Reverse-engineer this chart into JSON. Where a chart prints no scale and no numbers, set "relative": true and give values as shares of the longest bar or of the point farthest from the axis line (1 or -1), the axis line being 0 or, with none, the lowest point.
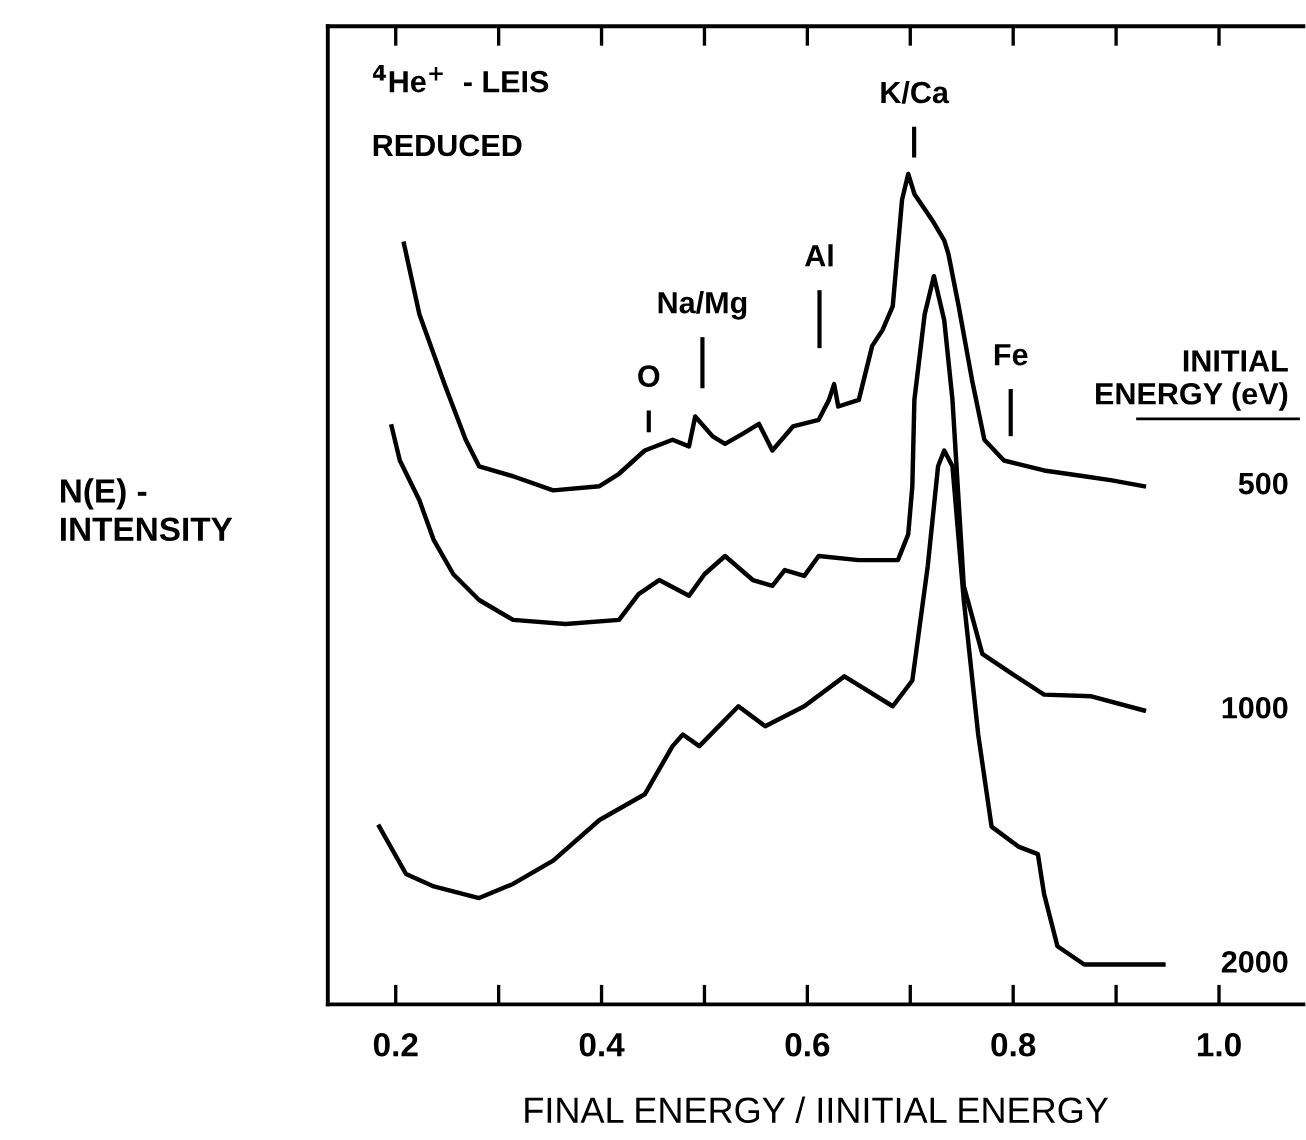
{
  "chart_data": {
    "type": "line",
    "relative": true,
    "xlabel": "FINAL ENERGY / IINITIAL ENERGY",
    "ylabel": "N(E) -\nINTENSITY",
    "legend_title": "INITIAL ENERGY (eV)",
    "xlim": [
      0.134,
      1.082
    ],
    "xticks": [
      0.2,
      {
        "value": 0.3,
        "label": null
      },
      0.4,
      {
        "value": 0.5,
        "label": null
      },
      0.6,
      {
        "value": 0.7,
        "label": null
      },
      0.8,
      {
        "value": 0.9,
        "label": null
      },
      {
        "value": 1.0,
        "label": "1.0"
      }
    ],
    "grid": false,
    "legend": false,
    "marker": "none",
    "line_style": "solid",
    "annotations": [
      "$^{4}$He$^{+}$  - LEIS",
      "REDUCED",
      "O",
      "Na/Mg",
      "Al",
      "K/Ca",
      "Fe"
    ],
    "series": [
      {
        "name": "500",
        "color": "#000000",
        "x": [
          0.208,
          0.223,
          0.248,
          0.268,
          0.281,
          0.314,
          0.353,
          0.398,
          0.417,
          0.442,
          0.469,
          0.485,
          0.491,
          0.508,
          0.52,
          0.537,
          0.553,
          0.566,
          0.586,
          0.611,
          0.621,
          0.626,
          0.63,
          0.65,
          0.663,
          0.673,
          0.683,
          0.692,
          0.698,
          0.704,
          0.721,
          0.733,
          0.737,
          0.747,
          0.76,
          0.772,
          0.791,
          0.83,
          0.869,
          0.896,
          0.927
        ],
        "values": [
          0.916,
          0.831,
          0.745,
          0.68,
          0.648,
          0.636,
          0.619,
          0.624,
          0.639,
          0.667,
          0.68,
          0.672,
          0.708,
          0.684,
          0.675,
          0.687,
          0.699,
          0.667,
          0.696,
          0.704,
          0.728,
          0.747,
          0.72,
          0.728,
          0.793,
          0.812,
          0.841,
          0.969,
          1.0,
          0.976,
          0.945,
          0.92,
          0.904,
          0.841,
          0.752,
          0.68,
          0.655,
          0.643,
          0.636,
          0.631,
          0.624
        ]
      },
      {
        "name": "1000",
        "color": "#000000",
        "x": [
          0.196,
          0.204,
          0.223,
          0.237,
          0.256,
          0.281,
          0.314,
          0.365,
          0.417,
          0.436,
          0.456,
          0.485,
          0.5,
          0.52,
          0.547,
          0.566,
          0.578,
          0.597,
          0.611,
          0.65,
          0.688,
          0.698,
          0.702,
          0.704,
          0.714,
          0.723,
          0.733,
          0.741,
          0.752,
          0.77,
          0.799,
          0.83,
          0.876,
          0.927
        ],
        "values": [
          0.696,
          0.655,
          0.607,
          0.559,
          0.518,
          0.487,
          0.463,
          0.458,
          0.463,
          0.494,
          0.511,
          0.492,
          0.518,
          0.54,
          0.511,
          0.504,
          0.523,
          0.516,
          0.54,
          0.535,
          0.535,
          0.566,
          0.624,
          0.728,
          0.831,
          0.877,
          0.824,
          0.728,
          0.504,
          0.422,
          0.398,
          0.373,
          0.371,
          0.354
        ]
      },
      {
        "name": "2000",
        "color": "#000000",
        "x": [
          0.184,
          0.21,
          0.237,
          0.281,
          0.314,
          0.353,
          0.398,
          0.442,
          0.469,
          0.479,
          0.495,
          0.533,
          0.559,
          0.597,
          0.636,
          0.683,
          0.702,
          0.717,
          0.727,
          0.733,
          0.741,
          0.752,
          0.766,
          0.779,
          0.805,
          0.824,
          0.83,
          0.843,
          0.869,
          0.946
        ],
        "values": [
          0.214,
          0.157,
          0.142,
          0.128,
          0.145,
          0.173,
          0.222,
          0.253,
          0.311,
          0.325,
          0.311,
          0.359,
          0.335,
          0.359,
          0.395,
          0.359,
          0.39,
          0.528,
          0.648,
          0.667,
          0.648,
          0.487,
          0.325,
          0.214,
          0.19,
          0.181,
          0.133,
          0.07,
          0.048,
          0.048
        ]
      }
    ]
  }
}
